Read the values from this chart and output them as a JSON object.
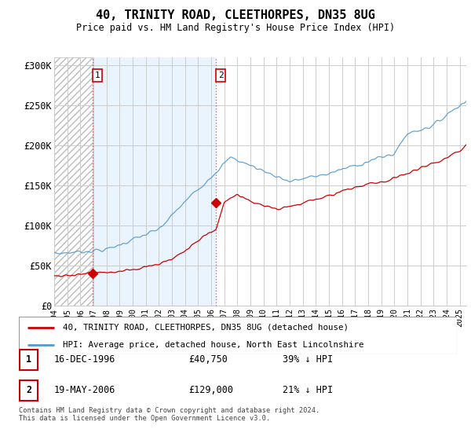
{
  "title": "40, TRINITY ROAD, CLEETHORPES, DN35 8UG",
  "subtitle": "Price paid vs. HM Land Registry's House Price Index (HPI)",
  "ylabel_ticks": [
    "£0",
    "£50K",
    "£100K",
    "£150K",
    "£200K",
    "£250K",
    "£300K"
  ],
  "ylim": [
    0,
    310000
  ],
  "xlim_start": 1994.0,
  "xlim_end": 2025.5,
  "xtick_years": [
    1994,
    1995,
    1996,
    1997,
    1998,
    1999,
    2000,
    2001,
    2002,
    2003,
    2004,
    2005,
    2006,
    2007,
    2008,
    2009,
    2010,
    2011,
    2012,
    2013,
    2014,
    2015,
    2016,
    2017,
    2018,
    2019,
    2020,
    2021,
    2022,
    2023,
    2024,
    2025
  ],
  "transaction1": {
    "date_num": 1996.96,
    "price": 40750,
    "label": "1"
  },
  "transaction2": {
    "date_num": 2006.38,
    "price": 129000,
    "label": "2"
  },
  "legend_red": "40, TRINITY ROAD, CLEETHORPES, DN35 8UG (detached house)",
  "legend_blue": "HPI: Average price, detached house, North East Lincolnshire",
  "table_rows": [
    {
      "num": "1",
      "date": "16-DEC-1996",
      "price": "£40,750",
      "hpi": "39% ↓ HPI"
    },
    {
      "num": "2",
      "date": "19-MAY-2006",
      "price": "£129,000",
      "hpi": "21% ↓ HPI"
    }
  ],
  "footer": "Contains HM Land Registry data © Crown copyright and database right 2024.\nThis data is licensed under the Open Government Licence v3.0.",
  "red_color": "#cc0000",
  "blue_color": "#5599cc",
  "blue_fill": "#ddeeff",
  "grid_color": "#cccccc",
  "hatch_color": "#e8e8e8",
  "vline_color": "#dd4444",
  "background_color": "#ffffff"
}
